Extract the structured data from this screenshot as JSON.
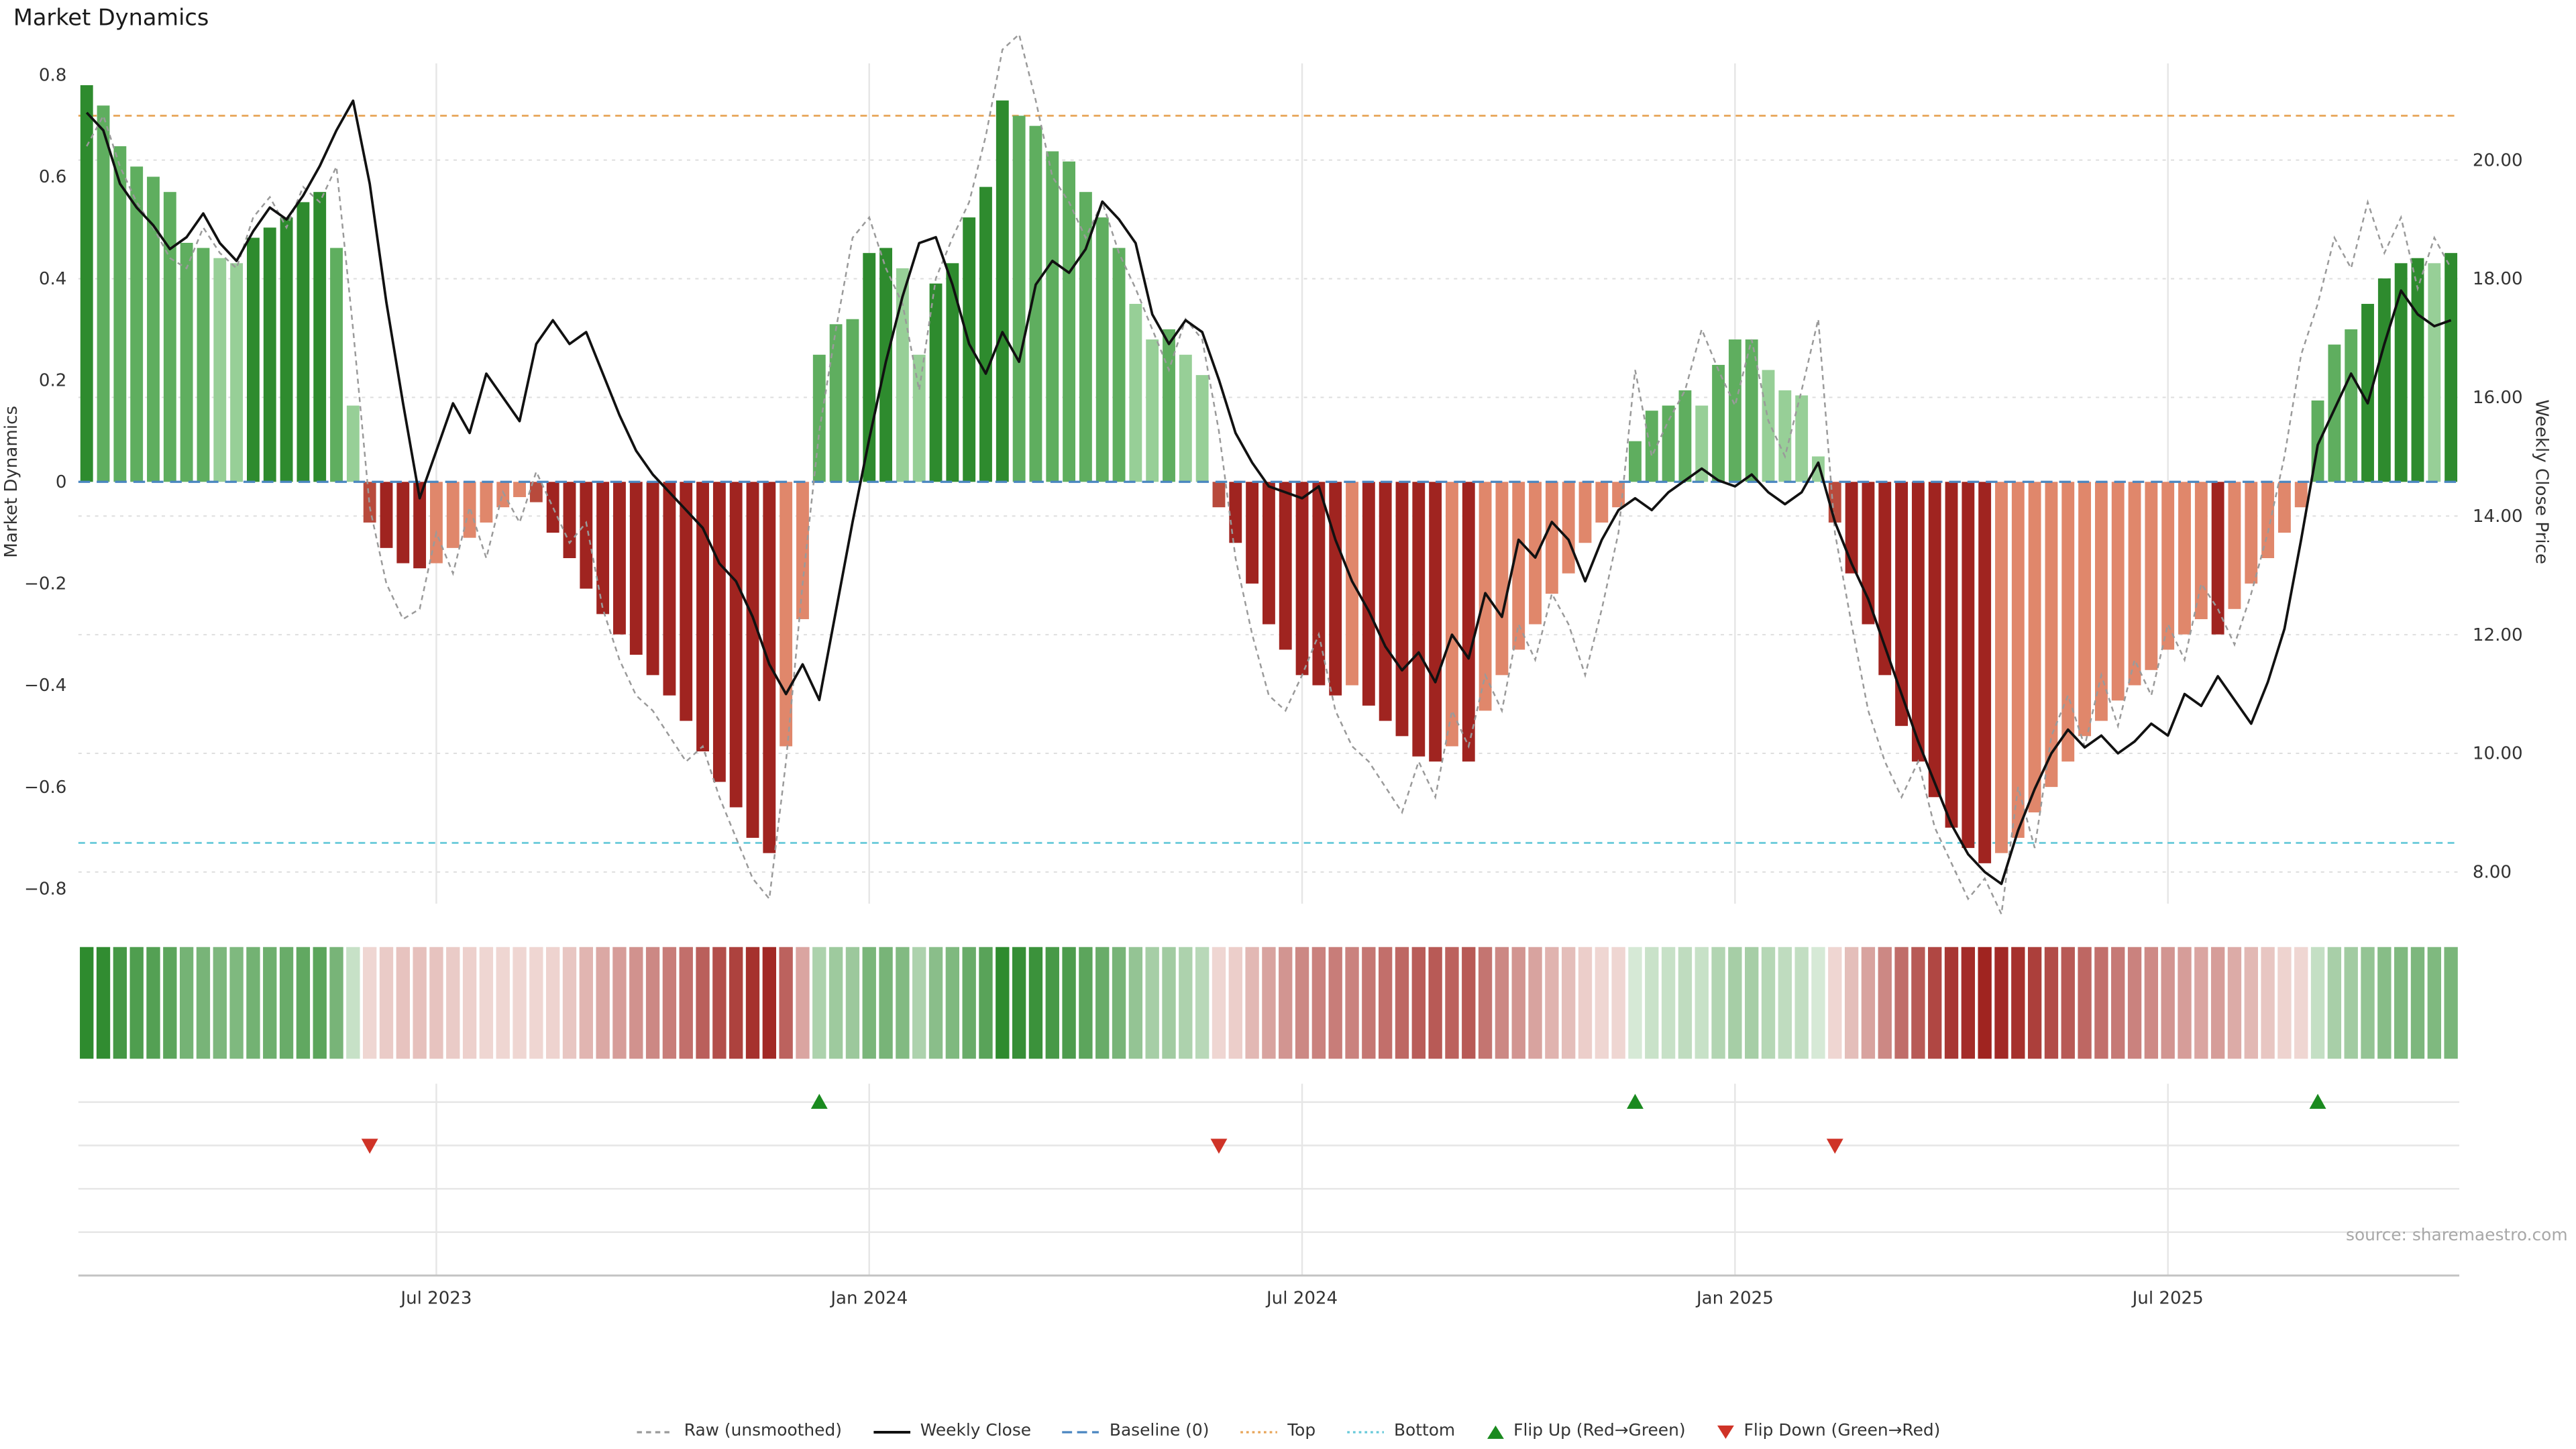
{
  "title": "Market Dynamics",
  "source": "source: sharemaestro.com",
  "colors": {
    "bar_green_dark": "#2e8b2e",
    "bar_green_mid": "#5fae5f",
    "bar_green_light": "#97cf97",
    "bar_red_dark": "#a02420",
    "bar_red_mid": "#b84a3c",
    "bar_red_light": "#e0876b",
    "line_close": "#111111",
    "line_raw": "#9a9a9a",
    "baseline": "#4a86c0",
    "top": "#e8a558",
    "bottom": "#67c9d9",
    "flip_up": "#1a8a1f",
    "flip_down": "#cf3327",
    "grid": "#e6e6e6",
    "grid_dotted": "#dedede",
    "axis_line": "#c4c4c4",
    "tick_text": "#333333",
    "source_text": "#a8a8a8"
  },
  "legend": [
    {
      "label": "Raw (unsmoothed)",
      "symbol": "dashed-line",
      "color": "#9a9a9a"
    },
    {
      "label": "Weekly Close",
      "symbol": "solid-line",
      "color": "#111111"
    },
    {
      "label": "Baseline (0)",
      "symbol": "dashed-line-long",
      "color": "#4a86c0"
    },
    {
      "label": "Top",
      "symbol": "dotted-line",
      "color": "#e8a558"
    },
    {
      "label": "Bottom",
      "symbol": "dotted-line",
      "color": "#67c9d9"
    },
    {
      "label": "Flip Up (Red→Green)",
      "symbol": "triangle-up",
      "color": "#1a8a1f"
    },
    {
      "label": "Flip Down (Green→Red)",
      "symbol": "triangle-down",
      "color": "#cf3327"
    }
  ],
  "chart_data": {
    "type": "bar+line",
    "x_unit": "week",
    "x_ticks": [
      {
        "label": "Jul 2023",
        "index": 21
      },
      {
        "label": "Jan 2024",
        "index": 47
      },
      {
        "label": "Jul 2024",
        "index": 73
      },
      {
        "label": "Jan 2025",
        "index": 99
      },
      {
        "label": "Jul 2025",
        "index": 125
      }
    ],
    "left_axis": {
      "label": "Market Dynamics",
      "range": [
        -0.8,
        0.8
      ],
      "ticks": [
        {
          "label": "0.8",
          "value": 0.8
        },
        {
          "label": "0.6",
          "value": 0.6
        },
        {
          "label": "0.4",
          "value": 0.4
        },
        {
          "label": "0.2",
          "value": 0.2
        },
        {
          "label": "0",
          "value": 0
        },
        {
          "label": "−0.2",
          "value": -0.2
        },
        {
          "label": "−0.4",
          "value": -0.4
        },
        {
          "label": "−0.6",
          "value": -0.6
        },
        {
          "label": "−0.8",
          "value": -0.8
        }
      ]
    },
    "right_axis": {
      "label": "Weekly Close Price",
      "range": [
        8,
        20
      ],
      "ticks": [
        {
          "label": "20.00",
          "value": 20
        },
        {
          "label": "18.00",
          "value": 18
        },
        {
          "label": "16.00",
          "value": 16
        },
        {
          "label": "14.00",
          "value": 14
        },
        {
          "label": "12.00",
          "value": 12
        },
        {
          "label": "10.00",
          "value": 10
        },
        {
          "label": "8.00",
          "value": 8
        }
      ]
    },
    "baseline": 0,
    "top_threshold": 0.72,
    "bottom_threshold": -0.71,
    "flip_up_indices": [
      44,
      93,
      134
    ],
    "flip_down_indices": [
      17,
      68,
      105
    ],
    "series": [
      {
        "name": "Market Dynamics (smoothed)",
        "type": "bar",
        "axis": "left",
        "values": [
          0.78,
          0.74,
          0.66,
          0.62,
          0.6,
          0.57,
          0.47,
          0.46,
          0.44,
          0.43,
          0.48,
          0.5,
          0.52,
          0.55,
          0.57,
          0.46,
          0.15,
          -0.08,
          -0.13,
          -0.16,
          -0.17,
          -0.16,
          -0.13,
          -0.11,
          -0.08,
          -0.05,
          -0.03,
          -0.04,
          -0.1,
          -0.15,
          -0.21,
          -0.26,
          -0.3,
          -0.34,
          -0.38,
          -0.42,
          -0.47,
          -0.53,
          -0.59,
          -0.64,
          -0.7,
          -0.73,
          -0.52,
          -0.27,
          0.25,
          0.31,
          0.32,
          0.45,
          0.46,
          0.42,
          0.25,
          0.39,
          0.43,
          0.52,
          0.58,
          0.75,
          0.72,
          0.7,
          0.65,
          0.63,
          0.57,
          0.52,
          0.46,
          0.35,
          0.28,
          0.3,
          0.25,
          0.21,
          -0.05,
          -0.12,
          -0.2,
          -0.28,
          -0.33,
          -0.38,
          -0.4,
          -0.42,
          -0.4,
          -0.44,
          -0.47,
          -0.5,
          -0.54,
          -0.55,
          -0.52,
          -0.55,
          -0.45,
          -0.38,
          -0.33,
          -0.28,
          -0.22,
          -0.18,
          -0.12,
          -0.08,
          -0.05,
          0.08,
          0.14,
          0.15,
          0.18,
          0.15,
          0.23,
          0.28,
          0.28,
          0.22,
          0.18,
          0.17,
          0.05,
          -0.08,
          -0.18,
          -0.28,
          -0.38,
          -0.48,
          -0.55,
          -0.62,
          -0.68,
          -0.72,
          -0.75,
          -0.73,
          -0.7,
          -0.65,
          -0.6,
          -0.55,
          -0.5,
          -0.47,
          -0.43,
          -0.4,
          -0.37,
          -0.33,
          -0.3,
          -0.27,
          -0.3,
          -0.25,
          -0.2,
          -0.15,
          -0.1,
          -0.05,
          0.16,
          0.27,
          0.3,
          0.35,
          0.4,
          0.43,
          0.44,
          0.43,
          0.45
        ]
      },
      {
        "name": "Raw (unsmoothed)",
        "type": "line",
        "axis": "left",
        "style": "dashed",
        "values": [
          0.66,
          0.72,
          0.62,
          0.55,
          0.5,
          0.44,
          0.42,
          0.5,
          0.45,
          0.42,
          0.52,
          0.56,
          0.5,
          0.58,
          0.55,
          0.62,
          0.3,
          -0.05,
          -0.2,
          -0.27,
          -0.25,
          -0.1,
          -0.18,
          -0.05,
          -0.15,
          -0.02,
          -0.08,
          0.02,
          -0.05,
          -0.12,
          -0.08,
          -0.25,
          -0.35,
          -0.42,
          -0.45,
          -0.5,
          -0.55,
          -0.52,
          -0.62,
          -0.7,
          -0.78,
          -0.82,
          -0.55,
          -0.2,
          0.1,
          0.3,
          0.48,
          0.52,
          0.42,
          0.35,
          0.18,
          0.4,
          0.48,
          0.55,
          0.68,
          0.85,
          0.88,
          0.75,
          0.6,
          0.55,
          0.48,
          0.55,
          0.45,
          0.38,
          0.3,
          0.22,
          0.32,
          0.28,
          0.1,
          -0.15,
          -0.3,
          -0.42,
          -0.45,
          -0.38,
          -0.3,
          -0.45,
          -0.52,
          -0.55,
          -0.6,
          -0.65,
          -0.55,
          -0.62,
          -0.45,
          -0.52,
          -0.38,
          -0.45,
          -0.28,
          -0.35,
          -0.22,
          -0.28,
          -0.38,
          -0.25,
          -0.1,
          0.22,
          0.05,
          0.12,
          0.18,
          0.3,
          0.22,
          0.15,
          0.28,
          0.12,
          0.05,
          0.18,
          0.32,
          -0.1,
          -0.28,
          -0.45,
          -0.55,
          -0.62,
          -0.55,
          -0.68,
          -0.75,
          -0.82,
          -0.78,
          -0.85,
          -0.6,
          -0.72,
          -0.5,
          -0.42,
          -0.52,
          -0.38,
          -0.48,
          -0.35,
          -0.42,
          -0.28,
          -0.35,
          -0.2,
          -0.25,
          -0.32,
          -0.22,
          -0.1,
          0.05,
          0.25,
          0.35,
          0.48,
          0.42,
          0.55,
          0.45,
          0.52,
          0.38,
          0.48,
          0.42
        ]
      },
      {
        "name": "Weekly Close",
        "type": "line",
        "axis": "right",
        "values": [
          20.8,
          20.5,
          19.6,
          19.2,
          18.9,
          18.5,
          18.7,
          19.1,
          18.6,
          18.3,
          18.8,
          19.2,
          19.0,
          19.4,
          19.9,
          20.5,
          21.0,
          19.6,
          17.6,
          15.9,
          14.3,
          15.1,
          15.9,
          15.4,
          16.4,
          16.0,
          15.6,
          16.9,
          17.3,
          16.9,
          17.1,
          16.4,
          15.7,
          15.1,
          14.7,
          14.4,
          14.1,
          13.8,
          13.2,
          12.9,
          12.3,
          11.5,
          11.0,
          11.5,
          10.9,
          12.4,
          13.9,
          15.3,
          16.6,
          17.7,
          18.6,
          18.7,
          17.9,
          16.9,
          16.4,
          17.1,
          16.6,
          17.9,
          18.3,
          18.1,
          18.5,
          19.3,
          19.0,
          18.6,
          17.4,
          16.9,
          17.3,
          17.1,
          16.3,
          15.4,
          14.9,
          14.5,
          14.4,
          14.3,
          14.5,
          13.6,
          12.9,
          12.4,
          11.8,
          11.4,
          11.7,
          11.2,
          12.0,
          11.6,
          12.7,
          12.3,
          13.6,
          13.3,
          13.9,
          13.6,
          12.9,
          13.6,
          14.1,
          14.3,
          14.1,
          14.4,
          14.6,
          14.8,
          14.6,
          14.5,
          14.7,
          14.4,
          14.2,
          14.4,
          14.9,
          13.9,
          13.2,
          12.6,
          11.8,
          11.0,
          10.2,
          9.5,
          8.8,
          8.3,
          8.0,
          7.8,
          8.7,
          9.4,
          10.0,
          10.4,
          10.1,
          10.3,
          10.0,
          10.2,
          10.5,
          10.3,
          11.0,
          10.8,
          11.3,
          10.9,
          10.5,
          11.2,
          12.1,
          13.6,
          15.2,
          15.8,
          16.4,
          15.9,
          16.9,
          17.8,
          17.4,
          17.2,
          17.3
        ]
      }
    ],
    "heatmap_strip": {
      "description": "color-intensity strip of the weekly dynamics values (green positive, red negative)",
      "source_series": "Market Dynamics (smoothed)"
    }
  }
}
